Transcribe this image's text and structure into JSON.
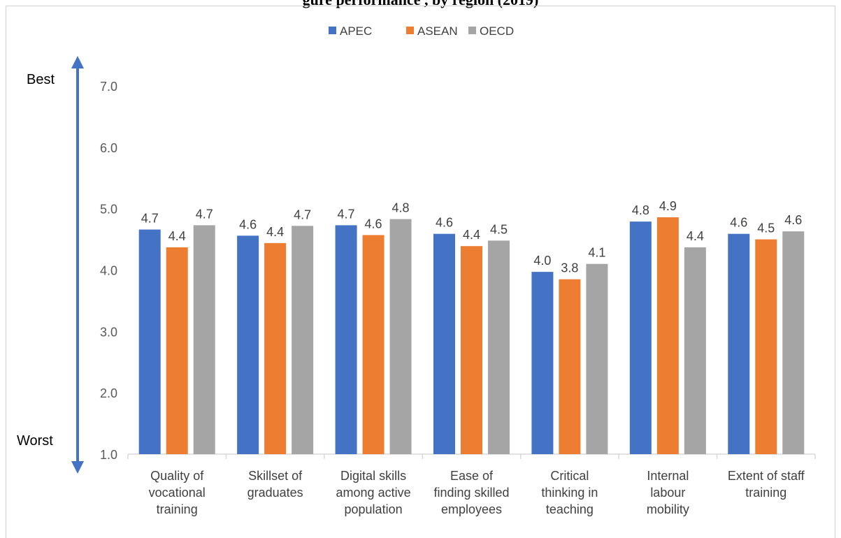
{
  "chart_data": {
    "type": "bar",
    "title": "gure                                                   performance                                       , by region (2019)",
    "categories": [
      "Quality of vocational training",
      "Skillset of graduates",
      "Digital skills among active population",
      "Ease of finding skilled employees",
      "Critical thinking in teaching",
      "Internal labour mobility",
      "Extent of staff training"
    ],
    "category_lines": [
      [
        "Quality of",
        "vocational",
        "training"
      ],
      [
        "Skillset of",
        "graduates"
      ],
      [
        "Digital skills",
        "among active",
        "population"
      ],
      [
        "Ease of",
        "finding skilled",
        "employees"
      ],
      [
        "Critical",
        "thinking in",
        "teaching"
      ],
      [
        "Internal",
        "labour",
        "mobility"
      ],
      [
        "Extent of staff",
        "training"
      ]
    ],
    "series": [
      {
        "name": "APEC",
        "color": "#4472c4",
        "values": [
          4.7,
          4.6,
          4.7,
          4.6,
          4.0,
          4.8,
          4.6
        ]
      },
      {
        "name": "ASEAN",
        "color": "#ed7d31",
        "values": [
          4.4,
          4.4,
          4.6,
          4.4,
          3.8,
          4.9,
          4.5
        ]
      },
      {
        "name": "OECD",
        "color": "#a5a5a5",
        "values": [
          4.7,
          4.7,
          4.8,
          4.5,
          4.1,
          4.4,
          4.6
        ]
      }
    ],
    "bar_heights": {
      "APEC": [
        4.66,
        4.56,
        4.73,
        4.59,
        3.97,
        4.79,
        4.59
      ],
      "ASEAN": [
        4.37,
        4.44,
        4.57,
        4.39,
        3.85,
        4.86,
        4.5
      ],
      "OECD": [
        4.73,
        4.72,
        4.83,
        4.48,
        4.1,
        4.37,
        4.63
      ]
    },
    "ylim": [
      1.0,
      7.0
    ],
    "yticks": [
      "1.0",
      "2.0",
      "3.0",
      "4.0",
      "5.0",
      "6.0",
      "7.0"
    ],
    "legend_position": "top",
    "grid": false,
    "annotations": {
      "best": "Best",
      "worst": "Worst",
      "arrow_color": "#4472c4"
    }
  }
}
